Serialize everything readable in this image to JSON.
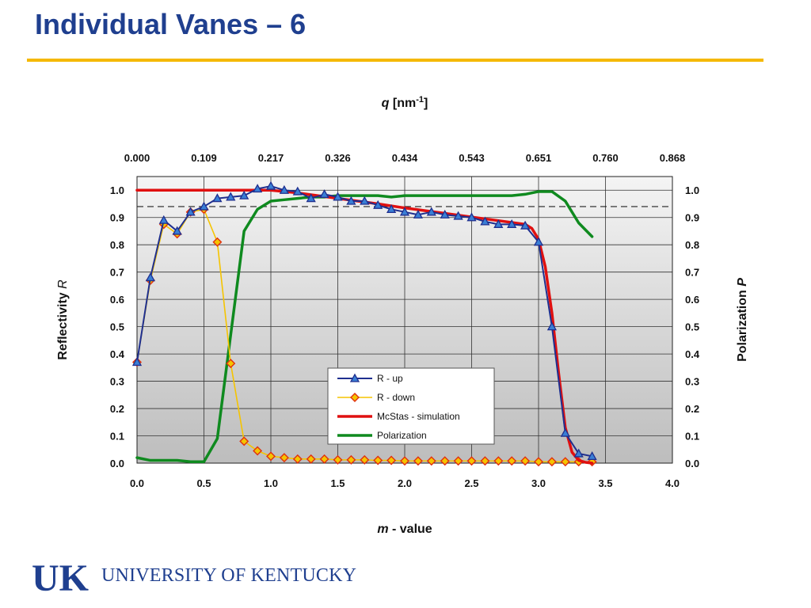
{
  "slide": {
    "title": "Individual Vanes – 6",
    "university": "UNIVERSITY OF KENTUCKY",
    "logo_text": "UK"
  },
  "colors": {
    "title": "#1f3f8f",
    "accent_rule": "#f5b800",
    "r_up": "#1f2f8f",
    "r_up_marker_fill": "#3a7fd5",
    "r_down": "#f5c400",
    "r_down_marker_fill": "#f5c400",
    "r_down_marker_stroke": "#e03010",
    "simulation": "#e01010",
    "polarization": "#0f8a1f"
  },
  "chart_data": {
    "type": "line",
    "top_axis_title": "q [nm-1]",
    "top_axis_title_italic": "q",
    "top_axis_title_unit": "[nm",
    "top_axis_title_sup": "-1",
    "top_axis_title_close": "]",
    "top_ticks": [
      "0.000",
      "0.109",
      "0.217",
      "0.326",
      "0.434",
      "0.543",
      "0.651",
      "0.760",
      "0.868"
    ],
    "xlabel_italic": "m",
    "xlabel_rest": " - value",
    "ylabel_left_text": "Reflectivity ",
    "ylabel_left_italic": "R",
    "ylabel_right_text": "Polarization ",
    "ylabel_right_italic": "P",
    "xlim": [
      0.0,
      4.0
    ],
    "ylim": [
      0.0,
      1.05
    ],
    "x_ticks": [
      "0.0",
      "0.5",
      "1.0",
      "1.5",
      "2.0",
      "2.5",
      "3.0",
      "3.5",
      "4.0"
    ],
    "y_ticks": [
      "0.0",
      "0.1",
      "0.2",
      "0.3",
      "0.4",
      "0.5",
      "0.6",
      "0.7",
      "0.8",
      "0.9",
      "1.0"
    ],
    "grid": true,
    "reference_line_y": 0.94,
    "legend_placement": "lower-center",
    "series": [
      {
        "name": "R - up",
        "marker": "triangle",
        "x": [
          0.0,
          0.1,
          0.2,
          0.3,
          0.4,
          0.5,
          0.6,
          0.7,
          0.8,
          0.9,
          1.0,
          1.1,
          1.2,
          1.3,
          1.4,
          1.5,
          1.6,
          1.7,
          1.8,
          1.9,
          2.0,
          2.1,
          2.2,
          2.3,
          2.4,
          2.5,
          2.6,
          2.7,
          2.8,
          2.9,
          3.0,
          3.1,
          3.2,
          3.3,
          3.4
        ],
        "values": [
          0.37,
          0.68,
          0.89,
          0.85,
          0.92,
          0.94,
          0.97,
          0.975,
          0.98,
          1.005,
          1.015,
          1.0,
          0.995,
          0.97,
          0.985,
          0.975,
          0.96,
          0.96,
          0.945,
          0.93,
          0.92,
          0.91,
          0.92,
          0.91,
          0.905,
          0.9,
          0.885,
          0.875,
          0.875,
          0.87,
          0.81,
          0.5,
          0.11,
          0.035,
          0.025
        ]
      },
      {
        "name": "R - down",
        "marker": "diamond",
        "x": [
          0.0,
          0.1,
          0.2,
          0.3,
          0.4,
          0.5,
          0.6,
          0.7,
          0.8,
          0.9,
          1.0,
          1.1,
          1.2,
          1.3,
          1.4,
          1.5,
          1.6,
          1.7,
          1.8,
          1.9,
          2.0,
          2.1,
          2.2,
          2.3,
          2.4,
          2.5,
          2.6,
          2.7,
          2.8,
          2.9,
          3.0,
          3.1,
          3.2,
          3.3,
          3.4
        ],
        "values": [
          0.37,
          0.67,
          0.875,
          0.84,
          0.92,
          0.93,
          0.81,
          0.365,
          0.08,
          0.045,
          0.025,
          0.02,
          0.015,
          0.015,
          0.015,
          0.012,
          0.012,
          0.012,
          0.01,
          0.01,
          0.008,
          0.008,
          0.008,
          0.008,
          0.008,
          0.008,
          0.008,
          0.008,
          0.008,
          0.008,
          0.005,
          0.005,
          0.005,
          0.005,
          0.005
        ]
      },
      {
        "name": "McStas - simulation",
        "marker": "none",
        "x": [
          0.0,
          0.5,
          1.0,
          1.2,
          1.5,
          1.8,
          2.0,
          2.3,
          2.6,
          2.9,
          2.95,
          3.0,
          3.05,
          3.1,
          3.15,
          3.2,
          3.25,
          3.3,
          3.35,
          3.4
        ],
        "values": [
          1.0,
          1.0,
          1.0,
          0.99,
          0.97,
          0.95,
          0.935,
          0.915,
          0.895,
          0.875,
          0.86,
          0.82,
          0.72,
          0.55,
          0.33,
          0.13,
          0.04,
          0.01,
          0.003,
          0.0
        ]
      },
      {
        "name": "Polarization",
        "marker": "none",
        "x": [
          0.0,
          0.1,
          0.2,
          0.3,
          0.4,
          0.5,
          0.6,
          0.7,
          0.8,
          0.9,
          1.0,
          1.1,
          1.2,
          1.3,
          1.4,
          1.5,
          1.6,
          1.7,
          1.8,
          1.9,
          2.0,
          2.1,
          2.2,
          2.3,
          2.4,
          2.5,
          2.6,
          2.7,
          2.8,
          2.9,
          3.0,
          3.1,
          3.2,
          3.3,
          3.4
        ],
        "values": [
          0.02,
          0.01,
          0.01,
          0.01,
          0.005,
          0.005,
          0.09,
          0.47,
          0.85,
          0.93,
          0.96,
          0.965,
          0.97,
          0.975,
          0.975,
          0.98,
          0.98,
          0.98,
          0.98,
          0.975,
          0.98,
          0.98,
          0.98,
          0.98,
          0.98,
          0.98,
          0.98,
          0.98,
          0.98,
          0.985,
          0.995,
          0.995,
          0.96,
          0.88,
          0.83
        ]
      }
    ],
    "legend": [
      "R - up",
      "R - down",
      "McStas - simulation",
      "Polarization"
    ]
  }
}
